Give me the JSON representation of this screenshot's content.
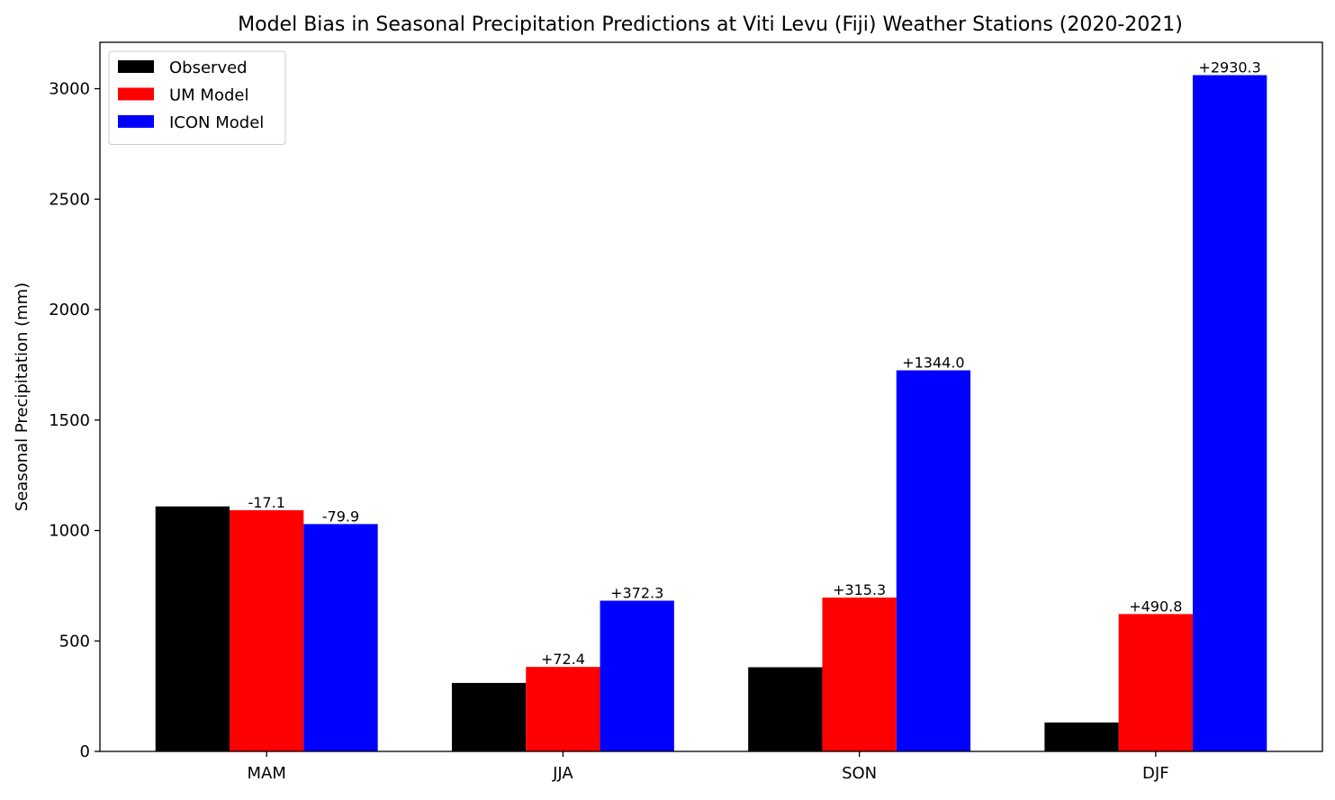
{
  "chart_data": {
    "type": "bar",
    "title": "Model Bias in Seasonal Precipitation Predictions at Viti Levu (Fiji) Weather Stations (2020-2021)",
    "xlabel": "",
    "ylabel": "Seasonal Precipitation (mm)",
    "ylim": [
      0,
      3210
    ],
    "yticks": [
      0,
      500,
      1000,
      1500,
      2000,
      2500,
      3000
    ],
    "categories": [
      "MAM",
      "JJA",
      "SON",
      "DJF"
    ],
    "legend_position": "top-left",
    "grid": false,
    "series": [
      {
        "name": "Observed",
        "color": "#000000",
        "values": [
          1109,
          310,
          381,
          131
        ],
        "labels": [
          "",
          "",
          "",
          ""
        ]
      },
      {
        "name": "UM Model",
        "color": "#ff0000",
        "values": [
          1091.9,
          382.4,
          696.3,
          621.8
        ],
        "labels": [
          "-17.1",
          "+72.4",
          "+315.3",
          "+490.8"
        ]
      },
      {
        "name": "ICON Model",
        "color": "#0000ff",
        "values": [
          1029.1,
          682.3,
          1725.0,
          3061.3
        ],
        "labels": [
          "-79.9",
          "+372.3",
          "+1344.0",
          "+2930.3"
        ]
      }
    ]
  }
}
